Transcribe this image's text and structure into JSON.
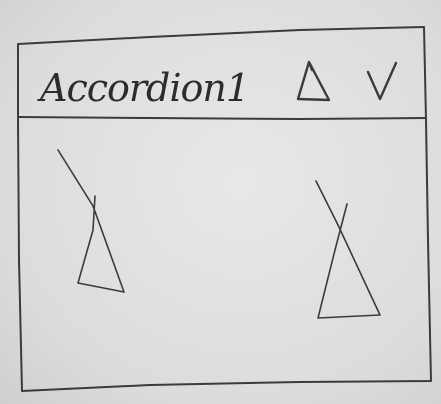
{
  "accordion": {
    "title": "Accordion1",
    "header_icons": [
      "triangle-icon",
      "chevron-down-icon"
    ],
    "content_icons": [
      "image-placeholder-icon",
      "image-placeholder-icon"
    ]
  }
}
